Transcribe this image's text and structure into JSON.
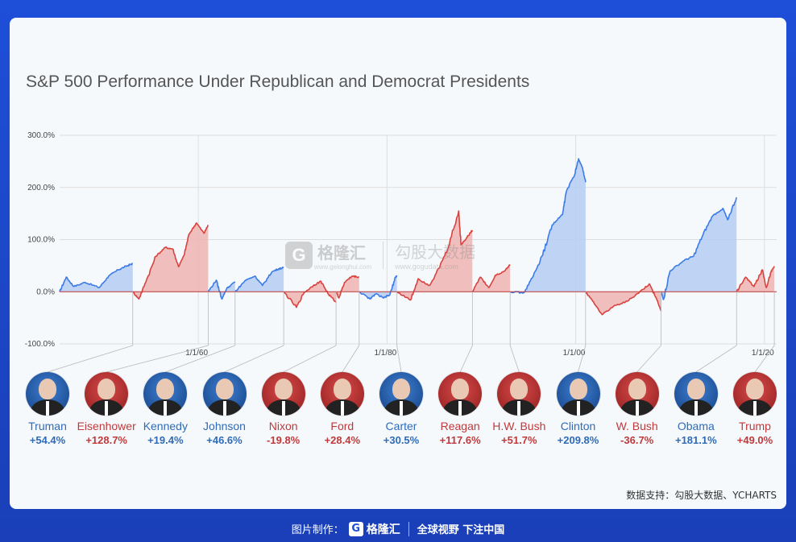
{
  "chart_data": {
    "type": "area",
    "title": "S&P 500 Performance Under Republican and Democrat Presidents",
    "xlabel": "",
    "ylabel": "",
    "ylim": [
      -100,
      300
    ],
    "y_ticks": [
      "300.0%",
      "200.0%",
      "100.0%",
      "0.0%",
      "-100.0%"
    ],
    "y_tick_values": [
      300,
      200,
      100,
      0,
      -100
    ],
    "x_ticks": [
      "1/1/60",
      "1/1/80",
      "1/1/00",
      "1/1/20"
    ],
    "x_tick_years": [
      1960,
      1980,
      2000,
      2020
    ],
    "xlim": [
      1945.3,
      2021.3
    ],
    "grid": true,
    "series": [
      {
        "name": "Truman",
        "party": "dem",
        "start": 1945.3,
        "end": 1953.05,
        "points": [
          [
            1945.3,
            0
          ],
          [
            1946.0,
            28
          ],
          [
            1946.8,
            10
          ],
          [
            1948.0,
            18
          ],
          [
            1949.5,
            8
          ],
          [
            1950.5,
            30
          ],
          [
            1951.5,
            42
          ],
          [
            1952.5,
            50
          ],
          [
            1953.05,
            54
          ]
        ]
      },
      {
        "name": "Eisenhower",
        "party": "rep",
        "start": 1953.05,
        "end": 1961.05,
        "points": [
          [
            1953.05,
            0
          ],
          [
            1953.7,
            -14
          ],
          [
            1954.5,
            22
          ],
          [
            1955.5,
            68
          ],
          [
            1956.5,
            85
          ],
          [
            1957.3,
            82
          ],
          [
            1957.9,
            48
          ],
          [
            1958.5,
            70
          ],
          [
            1959.0,
            110
          ],
          [
            1959.8,
            132
          ],
          [
            1960.6,
            112
          ],
          [
            1961.05,
            128
          ]
        ]
      },
      {
        "name": "Kennedy",
        "party": "dem",
        "start": 1961.05,
        "end": 1963.9,
        "points": [
          [
            1961.05,
            0
          ],
          [
            1961.9,
            22
          ],
          [
            1962.5,
            -14
          ],
          [
            1963.0,
            6
          ],
          [
            1963.9,
            19
          ]
        ]
      },
      {
        "name": "Johnson",
        "party": "dem",
        "start": 1963.9,
        "end": 1969.05,
        "points": [
          [
            1963.9,
            0
          ],
          [
            1965.0,
            22
          ],
          [
            1966.0,
            30
          ],
          [
            1966.8,
            12
          ],
          [
            1967.8,
            38
          ],
          [
            1968.5,
            44
          ],
          [
            1969.05,
            46
          ]
        ]
      },
      {
        "name": "Nixon",
        "party": "rep",
        "start": 1969.05,
        "end": 1974.6,
        "points": [
          [
            1969.05,
            0
          ],
          [
            1970.4,
            -30
          ],
          [
            1971.2,
            -2
          ],
          [
            1972.2,
            12
          ],
          [
            1973.0,
            20
          ],
          [
            1973.8,
            -5
          ],
          [
            1974.6,
            -20
          ]
        ]
      },
      {
        "name": "Ford",
        "party": "rep",
        "start": 1974.6,
        "end": 1977.05,
        "points": [
          [
            1974.6,
            0
          ],
          [
            1974.9,
            -12
          ],
          [
            1975.5,
            18
          ],
          [
            1976.3,
            30
          ],
          [
            1977.05,
            28
          ]
        ]
      },
      {
        "name": "Carter",
        "party": "dem",
        "start": 1977.05,
        "end": 1981.05,
        "points": [
          [
            1977.05,
            0
          ],
          [
            1978.2,
            -14
          ],
          [
            1978.8,
            -4
          ],
          [
            1979.6,
            -12
          ],
          [
            1980.3,
            -6
          ],
          [
            1980.9,
            28
          ],
          [
            1981.05,
            30
          ]
        ]
      },
      {
        "name": "Reagan",
        "party": "rep",
        "start": 1981.05,
        "end": 1989.05,
        "points": [
          [
            1981.05,
            0
          ],
          [
            1982.5,
            -16
          ],
          [
            1983.3,
            25
          ],
          [
            1984.5,
            12
          ],
          [
            1985.5,
            45
          ],
          [
            1986.5,
            85
          ],
          [
            1987.6,
            155
          ],
          [
            1987.85,
            90
          ],
          [
            1988.5,
            105
          ],
          [
            1989.05,
            118
          ]
        ]
      },
      {
        "name": "H.W. Bush",
        "party": "rep",
        "start": 1989.05,
        "end": 1993.05,
        "points": [
          [
            1989.05,
            0
          ],
          [
            1989.9,
            28
          ],
          [
            1990.8,
            8
          ],
          [
            1991.5,
            32
          ],
          [
            1992.5,
            40
          ],
          [
            1993.05,
            52
          ]
        ]
      },
      {
        "name": "Clinton",
        "party": "dem",
        "start": 1993.05,
        "end": 2001.05,
        "points": [
          [
            1993.05,
            0
          ],
          [
            1994.5,
            -2
          ],
          [
            1995.5,
            30
          ],
          [
            1996.5,
            70
          ],
          [
            1997.5,
            128
          ],
          [
            1998.6,
            148
          ],
          [
            1999.0,
            192
          ],
          [
            1999.9,
            225
          ],
          [
            2000.3,
            255
          ],
          [
            2000.7,
            238
          ],
          [
            2001.05,
            210
          ]
        ]
      },
      {
        "name": "W. Bush",
        "party": "rep",
        "start": 2001.05,
        "end": 2009.05,
        "points": [
          [
            2001.05,
            0
          ],
          [
            2001.8,
            -18
          ],
          [
            2002.8,
            -44
          ],
          [
            2004.0,
            -28
          ],
          [
            2005.5,
            -18
          ],
          [
            2006.8,
            0
          ],
          [
            2007.8,
            15
          ],
          [
            2008.6,
            -15
          ],
          [
            2009.05,
            -37
          ]
        ]
      },
      {
        "name": "Obama",
        "party": "dem",
        "start": 2009.05,
        "end": 2017.05,
        "points": [
          [
            2009.05,
            0
          ],
          [
            2009.3,
            -15
          ],
          [
            2010.0,
            40
          ],
          [
            2011.5,
            60
          ],
          [
            2012.5,
            68
          ],
          [
            2013.5,
            110
          ],
          [
            2014.5,
            145
          ],
          [
            2015.6,
            160
          ],
          [
            2016.1,
            138
          ],
          [
            2017.05,
            181
          ]
        ]
      },
      {
        "name": "Trump",
        "party": "rep",
        "start": 2017.05,
        "end": 2021.05,
        "points": [
          [
            2017.05,
            0
          ],
          [
            2018.0,
            28
          ],
          [
            2018.9,
            10
          ],
          [
            2019.8,
            42
          ],
          [
            2020.2,
            8
          ],
          [
            2020.7,
            38
          ],
          [
            2021.05,
            49
          ]
        ]
      }
    ]
  },
  "presidents": [
    {
      "name": "Truman",
      "value": "+54.4%",
      "party": "dem"
    },
    {
      "name": "Eisenhower",
      "value": "+128.7%",
      "party": "rep"
    },
    {
      "name": "Kennedy",
      "value": "+19.4%",
      "party": "dem"
    },
    {
      "name": "Johnson",
      "value": "+46.6%",
      "party": "dem"
    },
    {
      "name": "Nixon",
      "value": "-19.8%",
      "party": "rep"
    },
    {
      "name": "Ford",
      "value": "+28.4%",
      "party": "rep"
    },
    {
      "name": "Carter",
      "value": "+30.5%",
      "party": "dem"
    },
    {
      "name": "Reagan",
      "value": "+117.6%",
      "party": "rep"
    },
    {
      "name": "H.W. Bush",
      "value": "+51.7%",
      "party": "rep"
    },
    {
      "name": "Clinton",
      "value": "+209.8%",
      "party": "dem"
    },
    {
      "name": "W. Bush",
      "value": "-36.7%",
      "party": "rep"
    },
    {
      "name": "Obama",
      "value": "+181.1%",
      "party": "dem"
    },
    {
      "name": "Trump",
      "value": "+49.0%",
      "party": "rep"
    }
  ],
  "colors": {
    "rep_line": "#d9433f",
    "rep_fill": "#efb4b2",
    "dem_line": "#3d7be6",
    "dem_fill": "#b5cdf3",
    "grid": "#dddddd",
    "zero_line": "#c0393b"
  },
  "source": "数据支持：勾股大数据、YCHARTS",
  "watermark": {
    "logo_letter": "G",
    "name": "格隆汇",
    "sub": "www.gelonghui.com",
    "right_big": "勾股大数据",
    "right_small": "www.gogudata.com"
  },
  "footer": {
    "label": "图片制作：",
    "logo_letter": "G",
    "name": "格隆汇",
    "slogan": "全球视野 下注中国"
  }
}
